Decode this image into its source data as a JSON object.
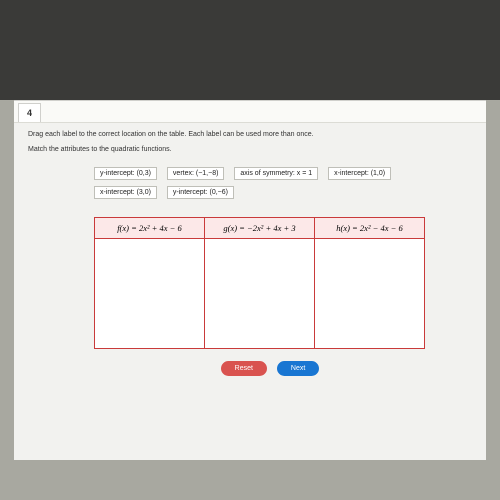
{
  "question_number": "4",
  "instructions": {
    "line1": "Drag each label to the correct location on the table. Each label can be used more than once.",
    "line2": "Match the attributes to the quadratic functions."
  },
  "labels": {
    "row1": {
      "a": "y-intercept: (0,3)",
      "b": "vertex: (−1,−8)",
      "c": "axis of symmetry: x = 1",
      "d": "x-intercept: (1,0)"
    },
    "row2": {
      "a": "x-intercept: (3,0)",
      "b": "y-intercept: (0,−6)"
    }
  },
  "table": {
    "headers": {
      "f": "f(x) = 2x² + 4x − 6",
      "g": "g(x) = −2x² + 4x + 3",
      "h": "h(x) = 2x² − 4x − 6"
    }
  },
  "buttons": {
    "reset": "Reset",
    "next": "Next"
  },
  "colors": {
    "table_border": "#c93a3a",
    "table_header_bg": "#fce8e8",
    "reset_btn": "#d9534f",
    "next_btn": "#1976d2",
    "page_bg": "#f2f2ef"
  }
}
